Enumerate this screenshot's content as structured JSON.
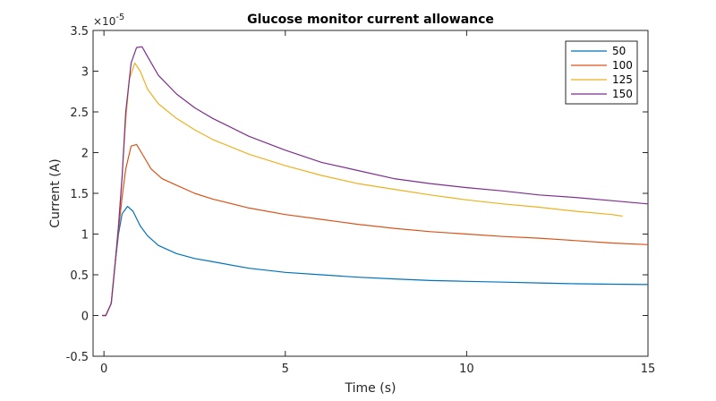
{
  "chart_data": {
    "type": "line",
    "title": "Glucose monitor current allowance",
    "xlabel": "Time (s)",
    "ylabel": "Current (A)",
    "exponent": {
      "base": "×10",
      "power": "-5"
    },
    "xlim": [
      -0.3,
      15
    ],
    "ylim": [
      -0.5,
      3.5
    ],
    "xticks": [
      0,
      5,
      10,
      15
    ],
    "yticks": [
      -0.5,
      0,
      0.5,
      1,
      1.5,
      2,
      2.5,
      3,
      3.5
    ],
    "xtick_labels": [
      "0",
      "5",
      "10",
      "15"
    ],
    "ytick_labels": [
      "-0.5",
      "0",
      "0.5",
      "1",
      "1.5",
      "2",
      "2.5",
      "3",
      "3.5"
    ],
    "grid": false,
    "legend_position": "top-right",
    "series": [
      {
        "name": "50",
        "color": "#0072BD",
        "points": [
          [
            -0.05,
            0
          ],
          [
            0.05,
            0
          ],
          [
            0.2,
            0.15
          ],
          [
            0.3,
            0.6
          ],
          [
            0.4,
            1.0
          ],
          [
            0.5,
            1.25
          ],
          [
            0.65,
            1.34
          ],
          [
            0.8,
            1.28
          ],
          [
            1.0,
            1.1
          ],
          [
            1.2,
            0.98
          ],
          [
            1.5,
            0.86
          ],
          [
            2,
            0.76
          ],
          [
            2.5,
            0.7
          ],
          [
            3,
            0.66
          ],
          [
            4,
            0.58
          ],
          [
            5,
            0.53
          ],
          [
            6,
            0.5
          ],
          [
            7,
            0.47
          ],
          [
            8,
            0.45
          ],
          [
            9,
            0.43
          ],
          [
            10,
            0.42
          ],
          [
            11,
            0.41
          ],
          [
            12,
            0.4
          ],
          [
            13,
            0.39
          ],
          [
            14,
            0.385
          ],
          [
            15,
            0.38
          ]
        ]
      },
      {
        "name": "100",
        "color": "#D95319",
        "points": [
          [
            -0.05,
            0
          ],
          [
            0.05,
            0
          ],
          [
            0.2,
            0.15
          ],
          [
            0.3,
            0.6
          ],
          [
            0.4,
            1.05
          ],
          [
            0.5,
            1.45
          ],
          [
            0.6,
            1.8
          ],
          [
            0.75,
            2.08
          ],
          [
            0.9,
            2.1
          ],
          [
            1.1,
            1.95
          ],
          [
            1.3,
            1.8
          ],
          [
            1.6,
            1.68
          ],
          [
            2,
            1.6
          ],
          [
            2.5,
            1.5
          ],
          [
            3,
            1.43
          ],
          [
            4,
            1.32
          ],
          [
            5,
            1.24
          ],
          [
            6,
            1.18
          ],
          [
            7,
            1.12
          ],
          [
            8,
            1.07
          ],
          [
            9,
            1.03
          ],
          [
            10,
            1.0
          ],
          [
            11,
            0.97
          ],
          [
            12,
            0.95
          ],
          [
            13,
            0.92
          ],
          [
            14,
            0.89
          ],
          [
            15,
            0.87
          ]
        ]
      },
      {
        "name": "125",
        "color": "#EDB120",
        "points": [
          [
            -0.05,
            0
          ],
          [
            0.05,
            0
          ],
          [
            0.2,
            0.15
          ],
          [
            0.3,
            0.6
          ],
          [
            0.4,
            1.1
          ],
          [
            0.5,
            1.7
          ],
          [
            0.6,
            2.4
          ],
          [
            0.7,
            2.9
          ],
          [
            0.85,
            3.1
          ],
          [
            1.0,
            3.0
          ],
          [
            1.2,
            2.78
          ],
          [
            1.5,
            2.6
          ],
          [
            2,
            2.42
          ],
          [
            2.5,
            2.28
          ],
          [
            3,
            2.16
          ],
          [
            4,
            1.98
          ],
          [
            5,
            1.84
          ],
          [
            6,
            1.72
          ],
          [
            7,
            1.62
          ],
          [
            8,
            1.55
          ],
          [
            9,
            1.48
          ],
          [
            10,
            1.42
          ],
          [
            11,
            1.37
          ],
          [
            12,
            1.33
          ],
          [
            13,
            1.28
          ],
          [
            14,
            1.24
          ],
          [
            14.3,
            1.22
          ]
        ]
      },
      {
        "name": "150",
        "color": "#7E2F8E",
        "points": [
          [
            -0.05,
            0
          ],
          [
            0.05,
            0
          ],
          [
            0.2,
            0.15
          ],
          [
            0.3,
            0.6
          ],
          [
            0.4,
            1.1
          ],
          [
            0.5,
            1.7
          ],
          [
            0.6,
            2.5
          ],
          [
            0.75,
            3.1
          ],
          [
            0.9,
            3.29
          ],
          [
            1.05,
            3.3
          ],
          [
            1.2,
            3.18
          ],
          [
            1.5,
            2.95
          ],
          [
            2,
            2.72
          ],
          [
            2.5,
            2.55
          ],
          [
            3,
            2.42
          ],
          [
            4,
            2.2
          ],
          [
            5,
            2.03
          ],
          [
            6,
            1.88
          ],
          [
            7,
            1.78
          ],
          [
            8,
            1.68
          ],
          [
            9,
            1.62
          ],
          [
            10,
            1.57
          ],
          [
            11,
            1.53
          ],
          [
            12,
            1.48
          ],
          [
            13,
            1.45
          ],
          [
            14,
            1.41
          ],
          [
            15,
            1.37
          ]
        ]
      }
    ]
  }
}
